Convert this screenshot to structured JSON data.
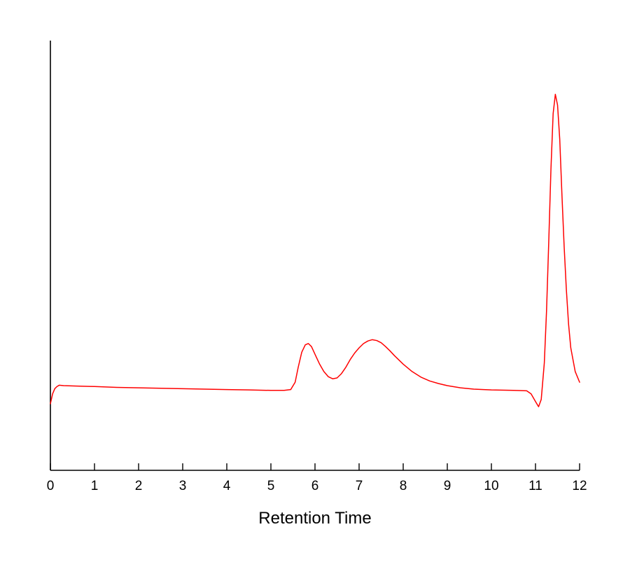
{
  "chart_data": {
    "type": "line",
    "title": "",
    "xlabel": "Retention Time",
    "ylabel": "",
    "xlim": [
      0,
      12
    ],
    "ylim": [
      0,
      100
    ],
    "x_ticks": [
      0,
      1,
      2,
      3,
      4,
      5,
      6,
      7,
      8,
      9,
      10,
      11,
      12
    ],
    "grid": false,
    "legend": "none",
    "series": [
      {
        "color": "#ff0000",
        "points": [
          [
            0.0,
            15.5
          ],
          [
            0.05,
            17.8
          ],
          [
            0.1,
            19.0
          ],
          [
            0.15,
            19.5
          ],
          [
            0.2,
            19.8
          ],
          [
            0.3,
            19.7
          ],
          [
            0.6,
            19.6
          ],
          [
            1.0,
            19.5
          ],
          [
            1.5,
            19.3
          ],
          [
            2.0,
            19.2
          ],
          [
            2.5,
            19.1
          ],
          [
            3.0,
            19.0
          ],
          [
            3.5,
            18.9
          ],
          [
            4.0,
            18.8
          ],
          [
            4.5,
            18.7
          ],
          [
            5.0,
            18.6
          ],
          [
            5.3,
            18.6
          ],
          [
            5.45,
            18.8
          ],
          [
            5.55,
            20.5
          ],
          [
            5.62,
            24.0
          ],
          [
            5.7,
            27.5
          ],
          [
            5.78,
            29.2
          ],
          [
            5.85,
            29.5
          ],
          [
            5.92,
            28.8
          ],
          [
            6.0,
            27.0
          ],
          [
            6.1,
            24.8
          ],
          [
            6.2,
            23.0
          ],
          [
            6.3,
            21.8
          ],
          [
            6.4,
            21.3
          ],
          [
            6.5,
            21.5
          ],
          [
            6.6,
            22.5
          ],
          [
            6.7,
            24.0
          ],
          [
            6.8,
            25.8
          ],
          [
            6.9,
            27.3
          ],
          [
            7.0,
            28.5
          ],
          [
            7.1,
            29.5
          ],
          [
            7.2,
            30.1
          ],
          [
            7.3,
            30.4
          ],
          [
            7.4,
            30.2
          ],
          [
            7.5,
            29.7
          ],
          [
            7.6,
            28.8
          ],
          [
            7.7,
            27.8
          ],
          [
            7.8,
            26.7
          ],
          [
            7.9,
            25.7
          ],
          [
            8.0,
            24.7
          ],
          [
            8.2,
            23.0
          ],
          [
            8.4,
            21.7
          ],
          [
            8.6,
            20.8
          ],
          [
            8.8,
            20.2
          ],
          [
            9.0,
            19.7
          ],
          [
            9.3,
            19.2
          ],
          [
            9.6,
            18.9
          ],
          [
            10.0,
            18.7
          ],
          [
            10.5,
            18.6
          ],
          [
            10.8,
            18.5
          ],
          [
            10.9,
            17.8
          ],
          [
            11.0,
            16.0
          ],
          [
            11.07,
            14.8
          ],
          [
            11.13,
            16.5
          ],
          [
            11.2,
            25.0
          ],
          [
            11.25,
            37.0
          ],
          [
            11.3,
            53.0
          ],
          [
            11.35,
            70.0
          ],
          [
            11.4,
            83.0
          ],
          [
            11.45,
            87.5
          ],
          [
            11.5,
            85.0
          ],
          [
            11.55,
            77.0
          ],
          [
            11.6,
            64.0
          ],
          [
            11.65,
            52.0
          ],
          [
            11.7,
            42.0
          ],
          [
            11.75,
            34.0
          ],
          [
            11.8,
            28.5
          ],
          [
            11.9,
            23.0
          ],
          [
            12.0,
            20.5
          ]
        ]
      }
    ]
  }
}
